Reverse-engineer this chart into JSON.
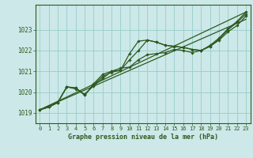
{
  "title": "Graphe pression niveau de la mer (hPa)",
  "bg_color": "#cce8e8",
  "grid_color": "#99cccc",
  "line_color": "#2d5a1e",
  "marker_color": "#2d5a1e",
  "xlim": [
    -0.5,
    23.5
  ],
  "ylim": [
    1018.5,
    1024.2
  ],
  "xtick_labels": [
    "0",
    "1",
    "2",
    "3",
    "4",
    "5",
    "6",
    "7",
    "8",
    "9",
    "10",
    "11",
    "12",
    "13",
    "14",
    "15",
    "16",
    "17",
    "18",
    "19",
    "20",
    "21",
    "22",
    "23"
  ],
  "xticks": [
    0,
    1,
    2,
    3,
    4,
    5,
    6,
    7,
    8,
    9,
    10,
    11,
    12,
    13,
    14,
    15,
    16,
    17,
    18,
    19,
    20,
    21,
    22,
    23
  ],
  "yticks": [
    1019,
    1020,
    1021,
    1022,
    1023
  ],
  "x": [
    0,
    1,
    2,
    3,
    4,
    5,
    6,
    7,
    8,
    9,
    10,
    11,
    12,
    13,
    14,
    15,
    16,
    17,
    18,
    19,
    20,
    21,
    22,
    23
  ],
  "values1": [
    1019.15,
    1019.28,
    1019.5,
    1020.25,
    1020.2,
    1019.85,
    1020.4,
    1020.85,
    1021.0,
    1021.05,
    1021.85,
    1022.45,
    1022.5,
    1022.4,
    1022.25,
    1022.2,
    1022.15,
    1022.05,
    1022.0,
    1022.25,
    1022.6,
    1023.05,
    1023.4,
    1023.85
  ],
  "values2": [
    1019.15,
    1019.28,
    1019.5,
    1020.25,
    1020.15,
    1019.9,
    1020.3,
    1020.65,
    1021.0,
    1021.15,
    1021.2,
    1021.55,
    1021.8,
    1021.85,
    1021.9,
    1022.05,
    1022.0,
    1021.9,
    1022.0,
    1022.2,
    1022.5,
    1022.9,
    1023.2,
    1023.65
  ],
  "values3": [
    1019.15,
    1019.28,
    1019.5,
    1020.25,
    1020.2,
    1019.85,
    1020.35,
    1020.75,
    1020.95,
    1021.05,
    1021.55,
    1022.0,
    1022.5,
    1022.4,
    1022.25,
    1022.2,
    1022.15,
    1022.05,
    1022.0,
    1022.2,
    1022.55,
    1023.0,
    1023.35,
    1023.75
  ],
  "trend1_x": [
    0,
    23
  ],
  "trend1_y": [
    1019.15,
    1023.85
  ],
  "trend2_x": [
    0,
    23
  ],
  "trend2_y": [
    1019.15,
    1023.5
  ]
}
